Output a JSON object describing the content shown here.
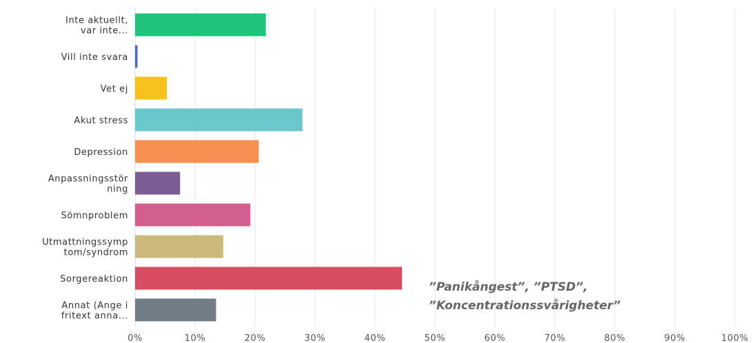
{
  "chart_data": {
    "type": "bar",
    "orientation": "horizontal",
    "categories": [
      "Inte aktuellt, var inte...",
      "Vill inte svara",
      "Vet ej",
      "Akut stress",
      "Depression",
      "Anpassningsstörning",
      "Sömnproblem",
      "Utmattningssymptom/syndrom",
      "Sorgereaktion",
      "Annat (Ange i fritext anna..."
    ],
    "category_label_lines": [
      [
        "Inte aktuellt,",
        "var inte..."
      ],
      [
        "Vill inte svara"
      ],
      [
        "Vet ej"
      ],
      [
        "Akut stress"
      ],
      [
        "Depression"
      ],
      [
        "Anpassningsstör",
        "ning"
      ],
      [
        "Sömnproblem"
      ],
      [
        "Utmattningssymp",
        "tom/syndrom"
      ],
      [
        "Sorgereaktion"
      ],
      [
        "Annat (Ange i",
        "fritext anna..."
      ]
    ],
    "values": [
      21.8,
      0.4,
      5.3,
      27.9,
      20.6,
      7.5,
      19.2,
      14.7,
      44.5,
      13.5
    ],
    "colors": [
      "#1ec47a",
      "#4a6db8",
      "#f7c21b",
      "#6ac8cc",
      "#f78e52",
      "#7b5c93",
      "#d35f91",
      "#cbb87b",
      "#d64e60",
      "#737d86"
    ],
    "xlim": [
      0,
      100
    ],
    "x_tick_labels": [
      "0%",
      "10%",
      "20%",
      "30%",
      "40%",
      "50%",
      "60%",
      "70%",
      "80%",
      "90%",
      "100%"
    ],
    "grid": true,
    "title": "",
    "xlabel": "",
    "ylabel": "",
    "annotation": {
      "lines": [
        "”Panikångest”, ”PTSD”,",
        "”Koncentrationssvårigheter”"
      ]
    }
  }
}
